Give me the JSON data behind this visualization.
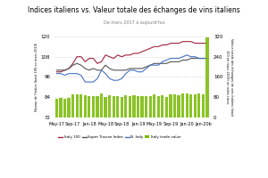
{
  "title": "Indices italiens vs. Valeur totale des échanges de vins italiens",
  "subtitle": "De mars 2017 à aujourd'hui",
  "ylabel_left": "Niveau de l'indice (basé 100 en mars 2019)",
  "ylabel_right": "Valeur totale des échanges de vins italiens (basé\n100 en mars 2019) en miles titres",
  "ylim_left": [
    72,
    120
  ],
  "ylim_right": [
    0,
    320
  ],
  "yticks_left": [
    72,
    84,
    96,
    108,
    120
  ],
  "yticks_right": [
    0,
    80,
    160,
    240,
    320
  ],
  "x_tick_positions": [
    0,
    4,
    8,
    12,
    16,
    20,
    24,
    28,
    32,
    36
  ],
  "x_labels": [
    "May-17",
    "Sep-17",
    "Jan-18",
    "May-18",
    "Sep-18",
    "Jan-19",
    "May-19",
    "Sep-19",
    "Jan-20",
    "Jan-20b"
  ],
  "italy100_color": "#a0243e",
  "super_tuscan_color": "#555555",
  "n_italy_color": "#4472c4",
  "bar_color": "#76b900",
  "italy100": [
    99,
    99,
    100,
    101,
    104,
    108,
    108,
    105,
    107,
    107,
    104,
    105,
    109,
    108,
    107,
    109,
    108,
    109,
    109,
    110,
    110,
    111,
    112,
    113,
    114,
    114,
    115,
    115,
    116,
    116,
    116,
    117,
    117,
    117,
    116,
    116,
    116,
    116
  ],
  "super_tuscan": [
    100,
    100,
    100,
    101,
    103,
    104,
    103,
    101,
    100,
    101,
    100,
    100,
    103,
    101,
    100,
    100,
    100,
    100,
    101,
    101,
    101,
    101,
    102,
    103,
    104,
    104,
    104,
    104,
    105,
    105,
    105,
    106,
    106,
    107,
    107,
    107,
    107,
    107
  ],
  "n_italy": [
    98,
    98,
    97,
    98,
    98,
    98,
    97,
    93,
    93,
    93,
    95,
    100,
    98,
    95,
    94,
    94,
    95,
    98,
    100,
    100,
    99,
    99,
    101,
    103,
    103,
    103,
    105,
    106,
    107,
    107,
    107,
    108,
    109,
    108,
    108,
    107,
    107,
    107
  ],
  "trade_value": [
    72,
    76,
    74,
    76,
    90,
    90,
    90,
    88,
    85,
    85,
    85,
    93,
    82,
    86,
    83,
    84,
    82,
    88,
    84,
    86,
    85,
    83,
    83,
    84,
    90,
    84,
    88,
    82,
    90,
    92,
    88,
    96,
    96,
    92,
    92,
    96,
    92,
    317
  ],
  "n_months": 38,
  "legend_labels": [
    "Italy 100",
    "Super Tuscan Index",
    "N. Italy",
    "Italy trade value"
  ]
}
